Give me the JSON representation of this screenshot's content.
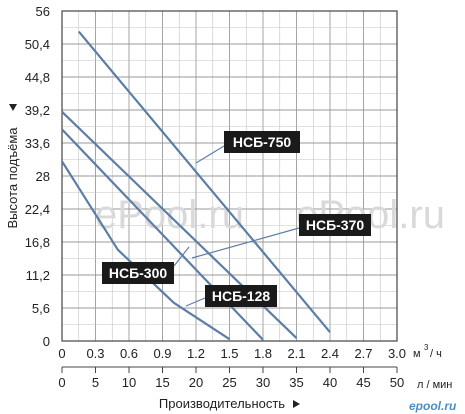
{
  "chart_data": {
    "type": "line",
    "ylabel": "Высота подъёма",
    "xlabel": "Производительность",
    "x_unit_m3": "м",
    "x_unit_m3_sup": "3",
    "x_unit_m3_rest": "/ ч",
    "x_unit_lmin": "л / мин",
    "ylim": [
      0,
      56
    ],
    "xlim": [
      0,
      3.0
    ],
    "y_ticks": [
      "0",
      "5,6",
      "11,2",
      "16,8",
      "22,4",
      "28",
      "33,6",
      "39,2",
      "44,8",
      "50,4",
      "56"
    ],
    "x_ticks_m3h": [
      "0",
      "0.3",
      "0.6",
      "0.9",
      "1.2",
      "1.5",
      "1.8",
      "2.1",
      "2.4",
      "2.7",
      "3.0"
    ],
    "x_ticks_lmin": [
      "0",
      "5",
      "10",
      "15",
      "20",
      "25",
      "30",
      "35",
      "40",
      "45",
      "50"
    ],
    "grid": true,
    "series": [
      {
        "name": "НСБ-750",
        "x": [
          0.15,
          2.4
        ],
        "y": [
          52.5,
          1.5
        ]
      },
      {
        "name": "НСБ-370",
        "x": [
          0.0,
          2.1
        ],
        "y": [
          38.9,
          0.5
        ]
      },
      {
        "name": "НСБ-300",
        "x": [
          0.0,
          1.8
        ],
        "y": [
          35.9,
          0.2
        ]
      },
      {
        "name": "НСБ-128",
        "x": [
          0.0,
          0.5,
          1.0,
          1.5
        ],
        "y": [
          30.5,
          15.5,
          6.5,
          0.3
        ]
      }
    ],
    "watermark": "ePool.ru",
    "logo_text": "epool.ru"
  }
}
